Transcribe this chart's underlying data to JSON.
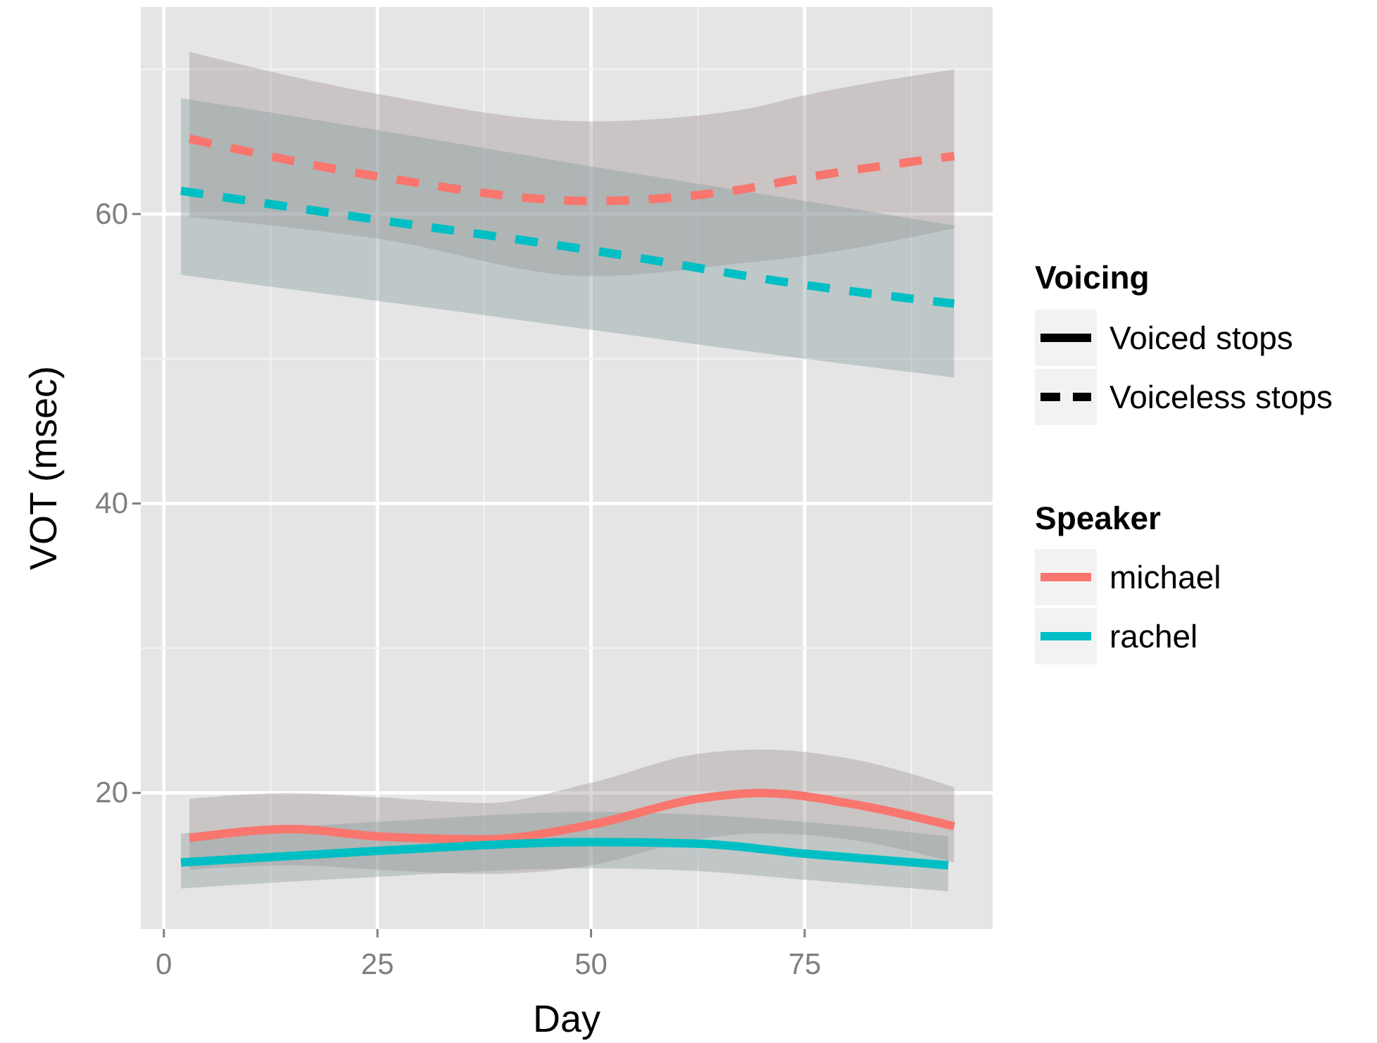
{
  "chart_data": {
    "type": "line",
    "xlabel": "Day",
    "ylabel": "VOT (msec)",
    "xlim": [
      -2.7,
      97
    ],
    "ylim": [
      10.6,
      74.3
    ],
    "xticks": [
      0,
      25,
      50,
      75
    ],
    "yticks": [
      20,
      40,
      60
    ],
    "grid": true,
    "legend": "right",
    "legend_title": "Speaker",
    "annotations": [
      "Voicing",
      "Voiced stops",
      "Voiceless stops"
    ],
    "series": [
      {
        "color": "#f8766d",
        "line_style": "dashed",
        "x": [
          3,
          25,
          50,
          67.6,
          75,
          92.5
        ],
        "values": [
          65.2,
          62.6,
          60.9,
          61.7,
          62.5,
          64.0
        ],
        "lower": [
          59.8,
          58.3,
          55.7,
          56.6,
          57.1,
          59.0
        ],
        "upper": [
          71.2,
          68.3,
          66.4,
          67.2,
          68.2,
          70.0
        ]
      },
      {
        "color": "#00bfc4",
        "line_style": "dashed",
        "x": [
          2,
          25,
          50,
          75,
          92.5
        ],
        "values": [
          61.6,
          59.6,
          57.5,
          55.1,
          53.8
        ],
        "lower": [
          55.8,
          54.0,
          52.0,
          50.0,
          48.7
        ],
        "upper": [
          68.0,
          65.8,
          63.3,
          60.9,
          59.2
        ]
      },
      {
        "name": "michael",
        "color": "#f8766d",
        "line_style": "solid",
        "x": [
          3,
          15,
          25,
          37.5,
          50,
          62.5,
          70,
          80,
          92.5
        ],
        "values": [
          16.9,
          17.5,
          17.0,
          16.8,
          17.8,
          19.6,
          20.0,
          19.3,
          17.7
        ],
        "lower": [
          14.7,
          15.0,
          14.7,
          14.4,
          15.0,
          16.8,
          17.2,
          16.8,
          15.2
        ],
        "upper": [
          19.6,
          20.0,
          19.7,
          19.3,
          20.7,
          22.7,
          23.0,
          22.4,
          20.4
        ]
      },
      {
        "name": "rachel",
        "color": "#00bfc4",
        "line_style": "solid",
        "x": [
          2,
          25,
          50,
          62.5,
          75,
          91.8
        ],
        "values": [
          15.2,
          16.0,
          16.6,
          16.5,
          15.8,
          15.0
        ],
        "lower": [
          13.4,
          14.2,
          14.8,
          14.6,
          14.0,
          13.2
        ],
        "upper": [
          17.2,
          18.0,
          18.7,
          18.5,
          18.0,
          17.0
        ]
      }
    ]
  }
}
